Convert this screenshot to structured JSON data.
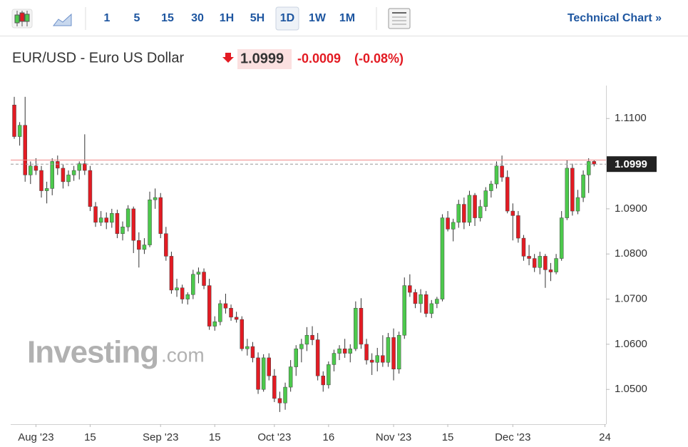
{
  "toolbar": {
    "intervals": [
      "1",
      "5",
      "15",
      "30",
      "1H",
      "5H",
      "1D",
      "1W",
      "1M"
    ],
    "active": "1D",
    "technical_chart": "Technical Chart »"
  },
  "header": {
    "title": "EUR/USD - Euro US Dollar",
    "change": "-0.0009",
    "change_pct": "(-0.08%)"
  },
  "watermark": {
    "brand": "Investing",
    "suffix": ".com"
  },
  "chart_data": {
    "type": "candlestick",
    "up_color": "#4cc94c",
    "down_color": "#e31b23",
    "last_price": 1.0999,
    "prev_close": 1.1008,
    "xlim": [
      -0.66,
      109.2
    ],
    "ylim": [
      1.0423,
      1.1173
    ],
    "xticks": [
      {
        "value": 4,
        "label": "Aug '23"
      },
      {
        "value": 14,
        "label": "15"
      },
      {
        "value": 27,
        "label": "Sep '23"
      },
      {
        "value": 37,
        "label": "15"
      },
      {
        "value": 48,
        "label": "Oct '23"
      },
      {
        "value": 58,
        "label": "16"
      },
      {
        "value": 70,
        "label": "Nov '23"
      },
      {
        "value": 80,
        "label": "15"
      },
      {
        "value": 92,
        "label": "Dec '23"
      },
      {
        "value": 109,
        "label": "24"
      }
    ],
    "yticks": [
      {
        "value": 1.05,
        "label": "1.0500"
      },
      {
        "value": 1.06,
        "label": "1.0600"
      },
      {
        "value": 1.07,
        "label": "1.0700"
      },
      {
        "value": 1.08,
        "label": "1.0800"
      },
      {
        "value": 1.09,
        "label": "1.0900"
      },
      {
        "value": 1.11,
        "label": "1.1100"
      }
    ],
    "open": [
      1.113,
      1.106,
      1.1085,
      1.0975,
      1.0995,
      1.0985,
      1.094,
      1.0945,
      1.1005,
      1.099,
      1.096,
      1.0975,
      1.0985,
      1.1,
      1.0985,
      1.0905,
      1.087,
      1.088,
      1.087,
      1.089,
      1.0845,
      1.086,
      1.09,
      1.083,
      1.081,
      1.082,
      1.092,
      1.0925,
      1.0845,
      1.0795,
      1.072,
      1.0725,
      1.07,
      1.071,
      1.0755,
      1.076,
      1.073,
      1.064,
      1.065,
      1.069,
      1.068,
      1.066,
      1.0655,
      1.059,
      1.0595,
      1.057,
      1.05,
      1.057,
      1.053,
      1.048,
      1.047,
      1.0505,
      1.055,
      1.059,
      1.06,
      1.062,
      1.061,
      1.053,
      1.051,
      1.0555,
      1.058,
      1.059,
      1.058,
      1.059,
      1.068,
      1.06,
      1.0565,
      1.056,
      1.0575,
      1.056,
      1.0615,
      1.0545,
      1.062,
      1.073,
      1.0715,
      1.069,
      1.071,
      1.0668,
      1.069,
      1.07,
      1.088,
      1.0855,
      1.087,
      1.091,
      1.087,
      1.093,
      1.088,
      1.0905,
      1.094,
      1.0955,
      1.0995,
      1.097,
      1.0895,
      1.0885,
      1.0835,
      1.0795,
      1.079,
      1.077,
      1.0795,
      1.0765,
      1.076,
      1.079,
      1.088,
      1.099,
      1.0895,
      1.0925,
      1.0975,
      1.1005
    ],
    "high": [
      1.1148,
      1.1092,
      1.1148,
      1.1005,
      1.1012,
      1.0995,
      1.096,
      1.1012,
      1.1018,
      1.0998,
      1.0985,
      1.0995,
      1.1005,
      1.1065,
      1.0995,
      1.0915,
      1.0895,
      1.0892,
      1.09,
      1.0898,
      1.0872,
      1.0908,
      1.0905,
      1.0848,
      1.0835,
      1.0938,
      1.0945,
      1.0935,
      1.086,
      1.0805,
      1.0745,
      1.0732,
      1.0715,
      1.0765,
      1.077,
      1.0768,
      1.0745,
      1.0662,
      1.0698,
      1.0712,
      1.0688,
      1.0672,
      1.0662,
      1.0612,
      1.0605,
      1.0582,
      1.0578,
      1.058,
      1.0545,
      1.0495,
      1.0515,
      1.0565,
      1.0598,
      1.0612,
      1.0638,
      1.064,
      1.0625,
      1.054,
      1.0562,
      1.0588,
      1.0598,
      1.0612,
      1.06,
      1.0695,
      1.0702,
      1.0612,
      1.058,
      1.0592,
      1.062,
      1.0625,
      1.0635,
      1.0628,
      1.0748,
      1.0755,
      1.0722,
      1.0722,
      1.0718,
      1.0698,
      1.0705,
      1.0888,
      1.0895,
      1.0878,
      1.092,
      1.0925,
      1.094,
      1.0935,
      1.092,
      1.0948,
      1.0962,
      1.1005,
      1.1018,
      1.0985,
      1.0912,
      1.0895,
      1.0842,
      1.082,
      1.08,
      1.0805,
      1.08,
      1.078,
      1.08,
      1.0895,
      1.1008,
      1.1,
      1.0942,
      1.0985,
      1.1012,
      1.1008
    ],
    "low": [
      1.1055,
      1.104,
      1.096,
      1.0955,
      1.0975,
      1.0925,
      1.0912,
      1.093,
      1.0975,
      1.0945,
      1.095,
      1.0962,
      1.0965,
      1.0975,
      1.0895,
      1.086,
      1.0862,
      1.0855,
      1.0858,
      1.0835,
      1.083,
      1.085,
      1.0802,
      1.077,
      1.08,
      1.0815,
      1.09,
      1.0835,
      1.0785,
      1.0712,
      1.0705,
      1.069,
      1.0688,
      1.07,
      1.0735,
      1.0722,
      1.0632,
      1.063,
      1.0642,
      1.0668,
      1.0652,
      1.0648,
      1.0585,
      1.0575,
      1.056,
      1.049,
      1.0495,
      1.052,
      1.0472,
      1.045,
      1.0455,
      1.0495,
      1.053,
      1.056,
      1.0585,
      1.0598,
      1.052,
      1.0495,
      1.0502,
      1.054,
      1.0565,
      1.057,
      1.056,
      1.0585,
      1.059,
      1.0555,
      1.0532,
      1.054,
      1.055,
      1.055,
      1.052,
      1.0535,
      1.0612,
      1.0705,
      1.068,
      1.067,
      1.066,
      1.0658,
      1.068,
      1.0695,
      1.085,
      1.0828,
      1.0858,
      1.0855,
      1.0862,
      1.0862,
      1.0872,
      1.0895,
      1.0925,
      1.0945,
      1.096,
      1.089,
      1.083,
      1.0825,
      1.0785,
      1.0775,
      1.076,
      1.0755,
      1.0725,
      1.074,
      1.0755,
      1.0785,
      1.0875,
      1.0885,
      1.0888,
      1.0915,
      1.0935,
      1.0994
    ],
    "close": [
      1.106,
      1.1085,
      1.0975,
      1.0995,
      1.0985,
      1.094,
      1.0945,
      1.1005,
      1.099,
      1.096,
      1.0975,
      1.0985,
      1.1,
      1.0985,
      1.0905,
      1.087,
      1.088,
      1.087,
      1.089,
      1.0845,
      1.086,
      1.09,
      1.083,
      1.081,
      1.082,
      1.092,
      1.0925,
      1.0845,
      1.0795,
      1.072,
      1.0725,
      1.07,
      1.071,
      1.0755,
      1.076,
      1.073,
      1.064,
      1.065,
      1.069,
      1.068,
      1.066,
      1.0655,
      1.059,
      1.0595,
      1.057,
      1.05,
      1.057,
      1.053,
      1.048,
      1.047,
      1.0505,
      1.055,
      1.059,
      1.06,
      1.062,
      1.061,
      1.053,
      1.051,
      1.0555,
      1.058,
      1.059,
      1.058,
      1.059,
      1.068,
      1.06,
      1.0565,
      1.056,
      1.0575,
      1.056,
      1.0615,
      1.0545,
      1.062,
      1.073,
      1.0715,
      1.069,
      1.071,
      1.0668,
      1.069,
      1.07,
      1.088,
      1.0855,
      1.087,
      1.091,
      1.087,
      1.093,
      1.088,
      1.0905,
      1.094,
      1.0955,
      1.0995,
      1.097,
      1.0895,
      1.0885,
      1.0835,
      1.0795,
      1.079,
      1.077,
      1.0795,
      1.0765,
      1.076,
      1.079,
      1.088,
      1.099,
      1.0895,
      1.0925,
      1.0975,
      1.1005,
      1.0999
    ]
  }
}
